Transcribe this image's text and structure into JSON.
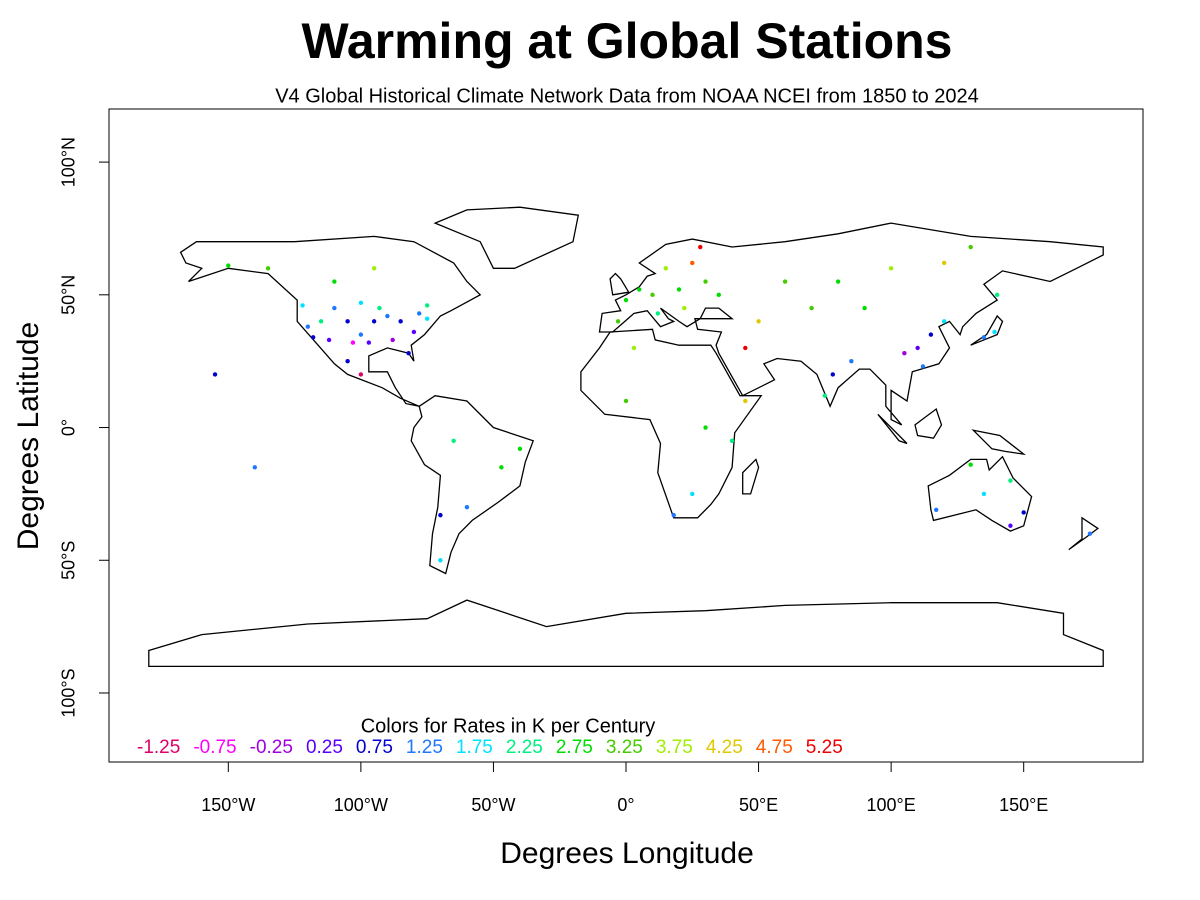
{
  "chart_data": {
    "type": "map",
    "title": "Warming at Global Stations",
    "subtitle": "V4 Global Historical Climate Network Data from NOAA NCEI from 1850 to 2024",
    "xlabel": "Degrees Longitude",
    "ylabel": "Degrees Latitude",
    "xlim": [
      -195,
      195
    ],
    "ylim": [
      -126,
      120
    ],
    "xticks": [
      {
        "value": -150,
        "label": "150°W"
      },
      {
        "value": -100,
        "label": "100°W"
      },
      {
        "value": -50,
        "label": "50°W"
      },
      {
        "value": 0,
        "label": "0°"
      },
      {
        "value": 50,
        "label": "50°E"
      },
      {
        "value": 100,
        "label": "100°E"
      },
      {
        "value": 150,
        "label": "150°E"
      }
    ],
    "yticks": [
      {
        "value": -100,
        "label": "100°S"
      },
      {
        "value": -50,
        "label": "50°S"
      },
      {
        "value": 0,
        "label": "0°"
      },
      {
        "value": 50,
        "label": "50°N"
      },
      {
        "value": 100,
        "label": "100°N"
      }
    ],
    "legend": {
      "title": "Colors for Rates in K per Century",
      "items": [
        {
          "value": -1.25,
          "color": "#e0006a"
        },
        {
          "value": -0.75,
          "color": "#ff00ff"
        },
        {
          "value": -0.25,
          "color": "#a000e0"
        },
        {
          "value": 0.25,
          "color": "#5a00ff"
        },
        {
          "value": 0.75,
          "color": "#0000d0"
        },
        {
          "value": 1.25,
          "color": "#1e78ff"
        },
        {
          "value": 1.75,
          "color": "#00e0ff"
        },
        {
          "value": 2.25,
          "color": "#00f080"
        },
        {
          "value": 2.75,
          "color": "#00dd00"
        },
        {
          "value": 3.25,
          "color": "#44cc00"
        },
        {
          "value": 3.75,
          "color": "#a0ee00"
        },
        {
          "value": 4.25,
          "color": "#e0c800"
        },
        {
          "value": 4.75,
          "color": "#ff5a00"
        },
        {
          "value": 5.25,
          "color": "#ee0000"
        }
      ]
    },
    "stations": {
      "x": [
        -120,
        -118,
        -112,
        -105,
        -100,
        -97,
        -95,
        -90,
        -85,
        -80,
        -75,
        -88,
        -110,
        -122,
        -93,
        -82,
        -100,
        -115,
        -78,
        -103,
        -150,
        -135,
        -110,
        -75,
        -95,
        -100,
        -105,
        -47,
        -60,
        -70,
        -65,
        -40,
        -70,
        0,
        10,
        20,
        15,
        25,
        -3,
        12,
        30,
        5,
        22,
        35,
        28,
        60,
        80,
        100,
        120,
        140,
        70,
        90,
        130,
        50,
        45,
        110,
        115,
        105,
        120,
        112,
        139,
        135,
        78,
        85,
        75,
        0,
        30,
        25,
        18,
        40,
        3,
        45,
        145,
        150,
        117,
        135,
        145,
        130,
        -155,
        -140,
        175
      ],
      "y": [
        38,
        34,
        33,
        40,
        35,
        32,
        40,
        42,
        40,
        36,
        41,
        33,
        45,
        46,
        45,
        28,
        47,
        40,
        43,
        32,
        61,
        60,
        55,
        46,
        60,
        20,
        25,
        -15,
        -30,
        -33,
        -5,
        -8,
        -50,
        48,
        50,
        52,
        60,
        62,
        40,
        43,
        55,
        52,
        45,
        50,
        68,
        55,
        55,
        60,
        62,
        50,
        45,
        45,
        68,
        40,
        30,
        30,
        35,
        28,
        40,
        23,
        36,
        34,
        20,
        25,
        12,
        10,
        0,
        -25,
        -33,
        -5,
        30,
        10,
        -37,
        -32,
        -31,
        -25,
        -20,
        -14,
        20,
        -15,
        -40
      ],
      "values": [
        1.25,
        0.75,
        0.25,
        0.75,
        1.25,
        0.25,
        0.75,
        1.25,
        0.75,
        0.25,
        1.75,
        -0.25,
        1.25,
        1.75,
        2.25,
        0.75,
        1.75,
        2.25,
        1.25,
        -0.75,
        2.75,
        3.25,
        2.75,
        2.25,
        3.75,
        -1.25,
        0.75,
        2.75,
        1.25,
        0.75,
        2.25,
        2.75,
        1.75,
        2.75,
        3.25,
        2.75,
        3.75,
        4.75,
        3.25,
        2.25,
        3.25,
        2.75,
        3.75,
        2.75,
        5.25,
        3.25,
        2.75,
        3.75,
        4.25,
        2.25,
        3.25,
        2.75,
        3.25,
        4.25,
        5.25,
        0.25,
        0.75,
        -0.25,
        1.75,
        1.25,
        1.75,
        1.25,
        0.75,
        1.25,
        2.25,
        3.25,
        2.75,
        1.75,
        1.25,
        2.25,
        3.75,
        4.25,
        0.25,
        0.75,
        1.25,
        1.75,
        2.25,
        2.75,
        0.75,
        1.25,
        1.25
      ]
    }
  }
}
